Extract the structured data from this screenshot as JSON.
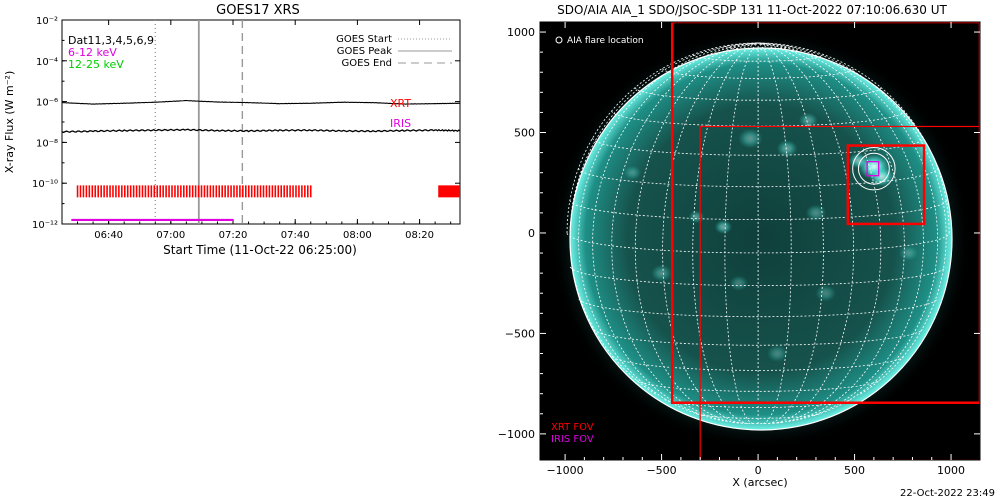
{
  "chart_data": [
    {
      "type": "line",
      "title": "GOES17 XRS",
      "xlabel": "Start Time (11-Oct-22 06:25:00)",
      "ylabel": "X-ray Flux (W m⁻²)",
      "y_scale": "log",
      "ylim": [
        1e-12,
        0.01
      ],
      "xlim_minutes": [
        0,
        128
      ],
      "xtick_labels": [
        {
          "t": 15,
          "label": "06:40"
        },
        {
          "t": 35,
          "label": "07:00"
        },
        {
          "t": 55,
          "label": "07:20"
        },
        {
          "t": 75,
          "label": "07:40"
        },
        {
          "t": 95,
          "label": "08:00"
        },
        {
          "t": 115,
          "label": "08:20"
        }
      ],
      "ytick_labels": [
        {
          "exp": -2,
          "label": "10⁻²"
        },
        {
          "exp": -4,
          "label": "10⁻⁴"
        },
        {
          "exp": -6,
          "label": "10⁻⁶"
        },
        {
          "exp": -8,
          "label": "10⁻⁸"
        },
        {
          "exp": -10,
          "label": "10⁻¹⁰"
        },
        {
          "exp": -12,
          "label": "10⁻¹²"
        }
      ],
      "series": [
        {
          "name": "6-12 keV",
          "color": "#000000",
          "t": [
            0,
            10,
            20,
            30,
            40,
            50,
            60,
            70,
            80,
            90,
            100,
            110,
            120,
            128
          ],
          "log_flux": [
            -6.05,
            -6.12,
            -6.08,
            -6.03,
            -5.95,
            -6.02,
            -6.05,
            -6.1,
            -6.08,
            -6.03,
            -6.05,
            -6.12,
            -6.1,
            -6.08
          ]
        },
        {
          "name": "12-25 keV",
          "color": "#000000",
          "t": [
            0,
            10,
            20,
            30,
            40,
            50,
            60,
            70,
            80,
            90,
            100,
            110,
            120,
            128
          ],
          "log_flux": [
            -7.48,
            -7.45,
            -7.42,
            -7.4,
            -7.38,
            -7.42,
            -7.44,
            -7.41,
            -7.4,
            -7.44,
            -7.45,
            -7.42,
            -7.4,
            -7.43
          ]
        }
      ],
      "markers": [
        {
          "name": "GOES Start",
          "t": 30,
          "style": "dotted",
          "color": "#999999"
        },
        {
          "name": "GOES Peak",
          "t": 44,
          "style": "solid",
          "color": "#999999"
        },
        {
          "name": "GOES End",
          "t": 58,
          "style": "dashed",
          "color": "#999999"
        }
      ],
      "legend_labels": [
        "GOES Start",
        "GOES Peak",
        "GOES End"
      ],
      "channel_text": {
        "dat": "Dat11,3,4,5,6,9",
        "low": "6-12 keV",
        "high": "12-25 keV"
      },
      "channel_colors": {
        "low": "#e000e0",
        "high": "#00cc00"
      },
      "xrt": {
        "label": "XRT",
        "color": "#ff0000",
        "t_start": 5,
        "t_end": 80,
        "log_flux": -10.4,
        "tick_count": 80,
        "extra_block_t": 121
      },
      "iris": {
        "label": "IRIS",
        "color": "#e000e0",
        "t_start": 3,
        "t_end": 55,
        "log_flux": -11.8
      }
    },
    {
      "type": "image",
      "title": "SDO/AIA AIA_1 SDO/JSOC-SDP 131 11-Oct-2022 07:10:06.630 UT",
      "xlabel": "X (arcsec)",
      "xlim": [
        -1130,
        1150
      ],
      "ylim": [
        -1130,
        1050
      ],
      "xtick_labels": [
        {
          "v": -1000,
          "label": "−1000"
        },
        {
          "v": -500,
          "label": "−500"
        },
        {
          "v": 0,
          "label": "0"
        },
        {
          "v": 500,
          "label": "500"
        },
        {
          "v": 1000,
          "label": "1000"
        }
      ],
      "ytick_labels": [
        {
          "v": 1000,
          "label": "1000"
        },
        {
          "v": 500,
          "label": "500"
        },
        {
          "v": 0,
          "label": "0"
        },
        {
          "v": -500,
          "label": "−500"
        },
        {
          "v": -1000,
          "label": "−1000"
        }
      ],
      "solar_radius": 990,
      "flare_label": "AIA flare location",
      "flare_location": [
        600,
        320
      ],
      "xrt_fov_label": "XRT FOV",
      "iris_fov_label": "IRIS FOV",
      "xrt_fov_color": "#ff0000",
      "iris_fov_color": "#e000e0",
      "xrt_fovs": [
        {
          "x0": -445,
          "x1": 1150,
          "y0": -845,
          "y1": 1050
        },
        {
          "x0": -300,
          "x1": 1150,
          "y0": -1130,
          "y1": 530
        },
        {
          "x0": 465,
          "x1": 860,
          "y0": 45,
          "y1": 435
        }
      ],
      "iris_fov": {
        "x0": 565,
        "x1": 625,
        "y0": 285,
        "y1": 355
      },
      "annotation_circles": [
        {
          "x": 600,
          "y": 320,
          "r": 110
        },
        {
          "x": 600,
          "y": 320,
          "r": 80
        }
      ]
    }
  ],
  "footer": {
    "timestamp": "22-Oct-2022 23:49"
  },
  "colors": {
    "background": "#ffffff",
    "sun_bg": "#000000",
    "sun_color": "#2fd6cc",
    "grid": "#ffffff"
  }
}
